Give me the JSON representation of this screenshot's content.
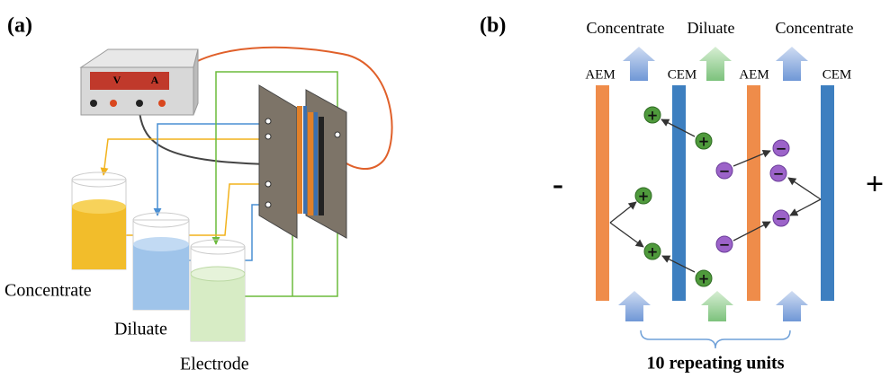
{
  "panel_a": {
    "label": "(a)",
    "meter": {
      "v": "V",
      "a": "A"
    },
    "reservoirs": [
      "Concentrate",
      "Diluate",
      "Electrode"
    ]
  },
  "panel_b": {
    "label": "(b)",
    "streams": [
      "Concentrate",
      "Diluate",
      "Concentrate"
    ],
    "membranes": [
      "AEM",
      "CEM",
      "AEM",
      "CEM"
    ],
    "cathode": "-",
    "anode": "+",
    "ions": {
      "cation": "+",
      "anion": "−"
    },
    "caption": "10 repeating units"
  }
}
